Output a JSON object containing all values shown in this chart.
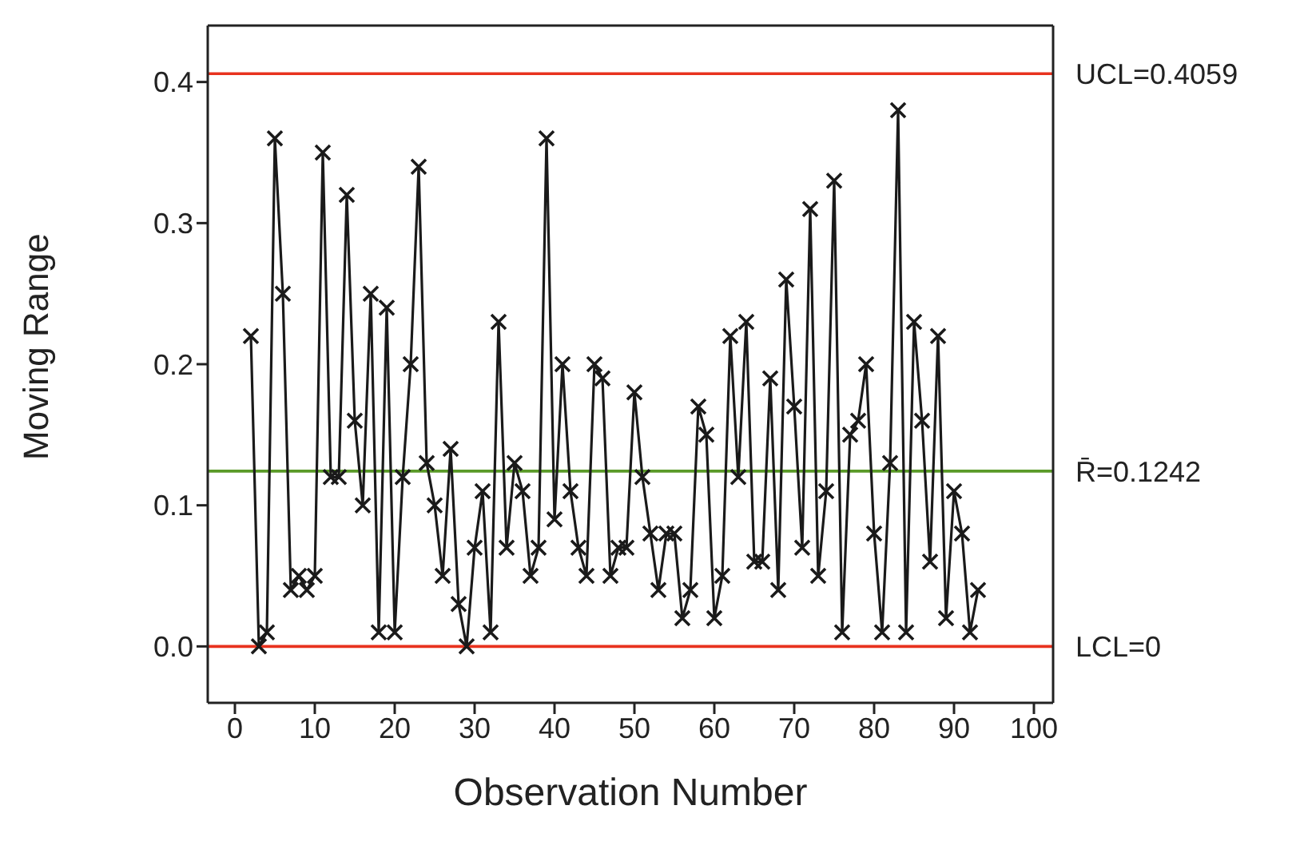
{
  "chart_data": {
    "type": "line",
    "xlabel": "Observation Number",
    "ylabel": "Moving Range",
    "x": [
      2,
      3,
      4,
      5,
      6,
      7,
      8,
      9,
      10,
      11,
      12,
      13,
      14,
      15,
      16,
      17,
      18,
      19,
      20,
      21,
      22,
      23,
      24,
      25,
      26,
      27,
      28,
      29,
      30,
      31,
      32,
      33,
      34,
      35,
      36,
      37,
      38,
      39,
      40,
      41,
      42,
      43,
      44,
      45,
      46,
      47,
      48,
      49,
      50,
      51,
      52,
      53,
      54,
      55,
      56,
      57,
      58,
      59,
      60,
      61,
      62,
      63,
      64,
      65,
      66,
      67,
      68,
      69,
      70,
      71,
      72,
      73,
      74,
      75,
      76,
      77,
      78,
      79,
      80,
      81,
      82,
      83,
      84,
      85,
      86,
      87,
      88,
      89,
      90,
      91,
      92,
      93
    ],
    "series": [
      {
        "color": "#1a1a1a",
        "values": [
          0.22,
          0.0,
          0.01,
          0.36,
          0.25,
          0.04,
          0.05,
          0.04,
          0.05,
          0.35,
          0.12,
          0.12,
          0.32,
          0.16,
          0.1,
          0.25,
          0.01,
          0.24,
          0.01,
          0.12,
          0.2,
          0.34,
          0.13,
          0.1,
          0.05,
          0.14,
          0.03,
          0.0,
          0.07,
          0.11,
          0.01,
          0.23,
          0.07,
          0.13,
          0.11,
          0.05,
          0.07,
          0.36,
          0.09,
          0.2,
          0.11,
          0.07,
          0.05,
          0.2,
          0.19,
          0.05,
          0.07,
          0.07,
          0.18,
          0.12,
          0.08,
          0.04,
          0.08,
          0.08,
          0.02,
          0.04,
          0.17,
          0.15,
          0.02,
          0.05,
          0.22,
          0.12,
          0.23,
          0.06,
          0.06,
          0.19,
          0.04,
          0.26,
          0.17,
          0.07,
          0.31,
          0.05,
          0.11,
          0.33,
          0.01,
          0.15,
          0.16,
          0.2,
          0.08,
          0.01,
          0.13,
          0.38,
          0.01,
          0.23,
          0.16,
          0.06,
          0.22,
          0.02,
          0.11,
          0.08,
          0.01,
          0.04
        ]
      }
    ],
    "xlim": [
      -3.4,
      102.4
    ],
    "xticks": [
      0,
      10,
      20,
      30,
      40,
      50,
      60,
      70,
      80,
      90,
      100
    ],
    "ylim": [
      -0.04,
      0.44
    ],
    "yticks": [
      {
        "value": 0,
        "label": "0.0"
      },
      0.1,
      0.2,
      0.3,
      0.4
    ],
    "ref_lines": [
      {
        "axis": "y",
        "value": 0.4059,
        "label": "UCL=0.4059",
        "color": "#e8321e"
      },
      {
        "axis": "y",
        "value": 0.1242,
        "label": "R̄=0.1242",
        "color": "#5a9a28"
      },
      {
        "axis": "y",
        "value": 0,
        "label": "LCL=0",
        "color": "#e8321e"
      }
    ],
    "marker": "cross",
    "line_style": "solid",
    "grid": false,
    "legend": false
  }
}
